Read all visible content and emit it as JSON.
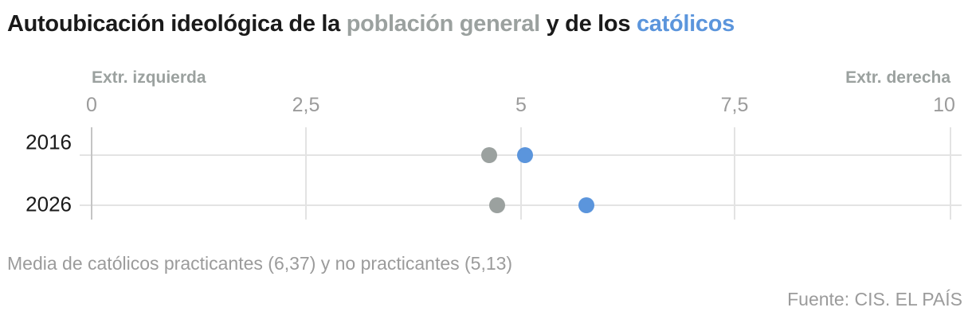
{
  "title": {
    "part1": "Autoubicación ideológica de la ",
    "part2": "población general",
    "part3": " y de los ",
    "part4": "católicos"
  },
  "axis": {
    "left_label": "Extr. izquierda",
    "right_label": "Extr. derecha",
    "ticks": [
      "0",
      "2,5",
      "5",
      "7,5",
      "10"
    ]
  },
  "rows": [
    {
      "label": "2016"
    },
    {
      "label": "2026"
    }
  ],
  "note": "Media de católicos practicantes (6,37) y no practicantes (5,13)",
  "source": "Fuente: CIS. EL PAÍS",
  "colors": {
    "general": "#9ba19f",
    "catholics": "#5b95dc",
    "title": "#1a1a1a"
  },
  "chart_data": {
    "type": "scatter",
    "title": "Autoubicación ideológica de la población general y de los católicos",
    "xlabel": "",
    "ylabel": "",
    "xlim": [
      0,
      10
    ],
    "x_ticks": [
      0,
      2.5,
      5,
      7.5,
      10
    ],
    "x_tick_labels": [
      "0",
      "2,5",
      "5",
      "7,5",
      "10"
    ],
    "axis_annotations": {
      "left": "Extr. izquierda",
      "right": "Extr. derecha"
    },
    "categories": [
      "2016",
      "2026"
    ],
    "series": [
      {
        "name": "población general",
        "color": "#9ba19f",
        "values": [
          4.63,
          4.72
        ]
      },
      {
        "name": "católicos",
        "color": "#5b95dc",
        "values": [
          5.05,
          5.76
        ]
      }
    ],
    "grid": true,
    "legend": "inline in title",
    "note": "Media de católicos practicantes (6,37) y no practicantes (5,13)",
    "source": "Fuente: CIS. EL PAÍS"
  }
}
